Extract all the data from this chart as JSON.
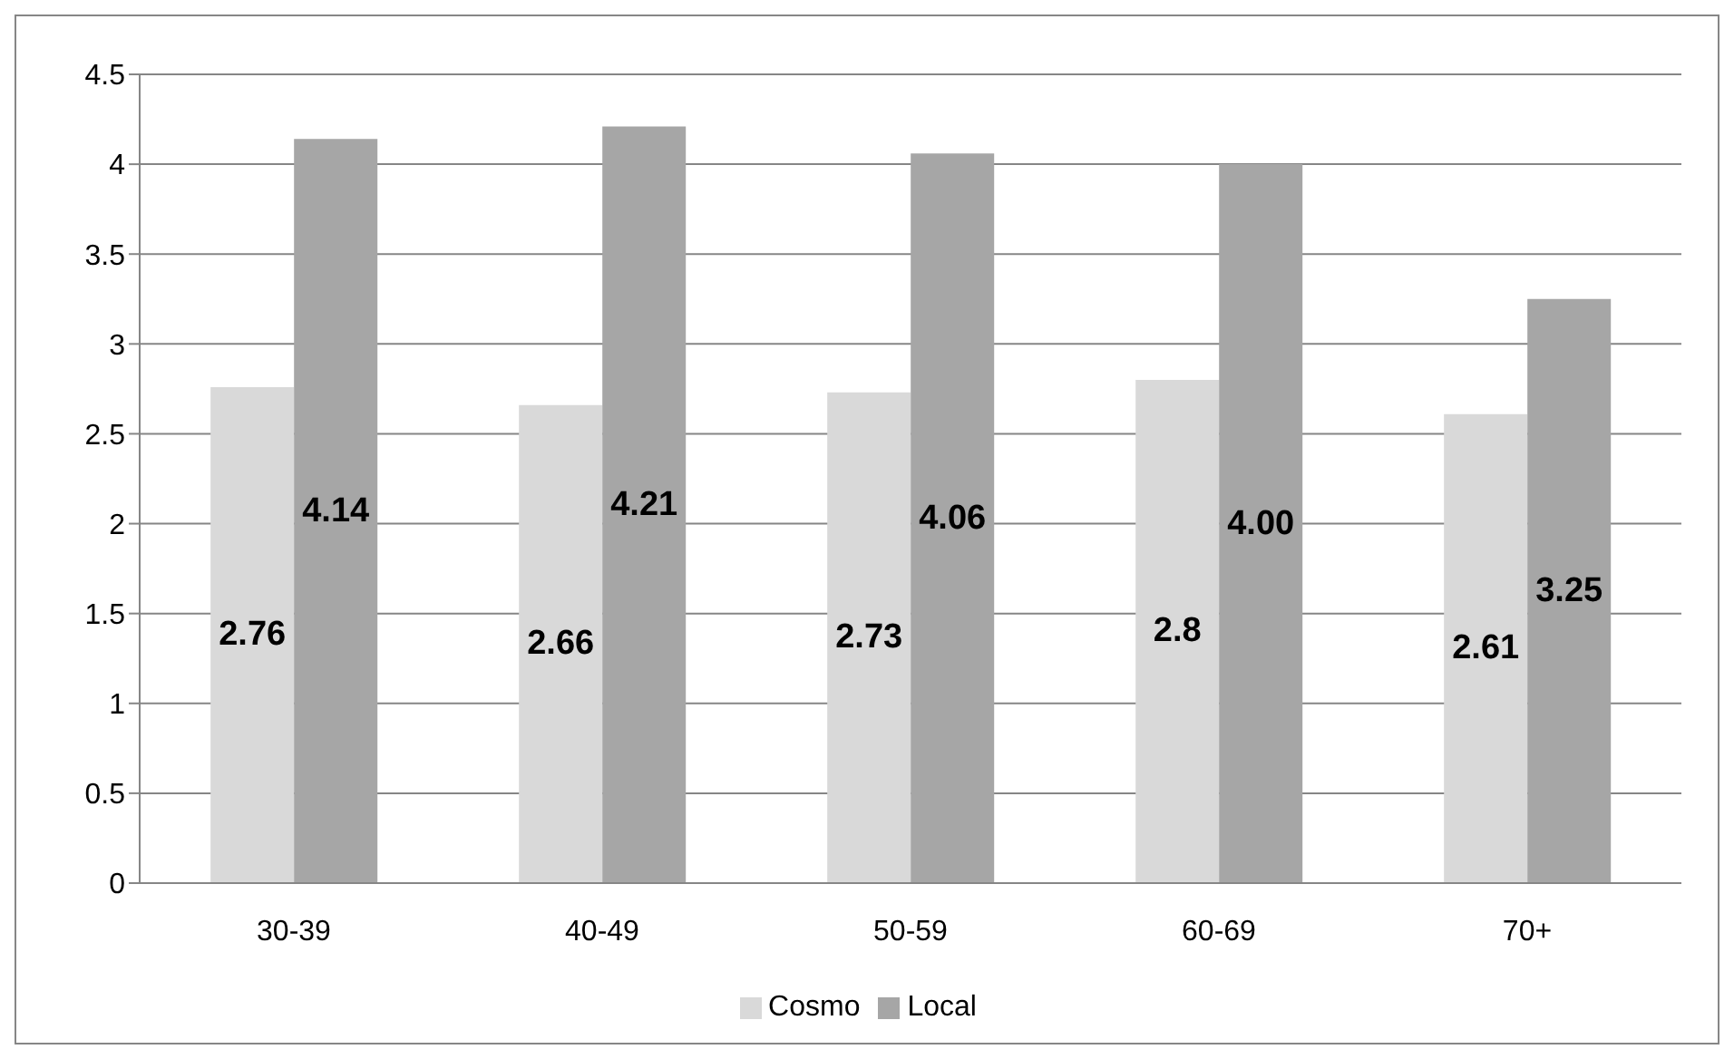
{
  "chart_data": {
    "type": "bar",
    "categories": [
      "30-39",
      "40-49",
      "50-59",
      "60-69",
      "70+"
    ],
    "series": [
      {
        "name": "Cosmo",
        "color": "#d9d9d9",
        "values": [
          2.76,
          2.66,
          2.73,
          2.8,
          2.61
        ],
        "value_labels": [
          "2.76",
          "2.66",
          "2.73",
          "2.8",
          "2.61"
        ]
      },
      {
        "name": "Local",
        "color": "#a6a6a6",
        "values": [
          4.14,
          4.21,
          4.06,
          4.0,
          3.25
        ],
        "value_labels": [
          "4.14",
          "4.21",
          "4.06",
          "4.00",
          "3.25"
        ]
      }
    ],
    "ylim": [
      0,
      4.5
    ],
    "yticks": [
      0,
      0.5,
      1,
      1.5,
      2,
      2.5,
      3,
      3.5,
      4,
      4.5
    ],
    "grid": "y",
    "legend": "bottom"
  }
}
